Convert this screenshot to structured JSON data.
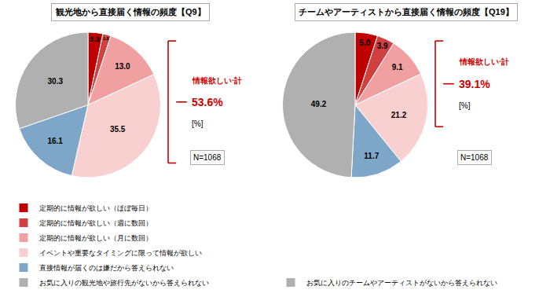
{
  "chart_data": [
    {
      "type": "pie",
      "title": "観光地から直接届く情報の頻度【Q9】",
      "categories": [
        "定期的に情報が欲しい（ほぼ毎日）",
        "定期的に情報が欲しい（週に数回）",
        "定期的に情報が欲しい（月に数回）",
        "イベントや重要なタイミングに限って情報が欲しい",
        "直接情報が届くのは嫌だから答えられない",
        "お気に入りの観光地や旅行先がないから答えられない"
      ],
      "values": [
        3.3,
        1.8,
        13.0,
        35.5,
        16.1,
        30.3
      ],
      "value_labels": [
        "3.3",
        "1.8",
        "13.0",
        "35.5",
        "16.1",
        "30.3"
      ],
      "colors": [
        "#c00000",
        "#d04040",
        "#f0a0a0",
        "#f9d0d0",
        "#7ea6c8",
        "#b0b0b0"
      ],
      "data_labels": true,
      "legend": "bottom",
      "annotations": [
        {
          "text": "情報欲しい·計",
          "color": "#cc0000"
        },
        {
          "text": "53.6%",
          "color": "#cc0000"
        },
        {
          "text": "[%]"
        },
        {
          "text": "N=1068"
        }
      ]
    },
    {
      "type": "pie",
      "title": "チームやアーティストから直接届く情報の頻度【Q19】",
      "categories": [
        "定期的に情報が欲しい（ほぼ毎日）",
        "定期的に情報が欲しい（週に数回）",
        "定期的に情報が欲しい（月に数回）",
        "イベントや重要なタイミングに限って情報が欲しい",
        "直接情報が届くのは嫌だから答えられない",
        "お気に入りのチームやアーティストがないから答えられない"
      ],
      "values": [
        5.0,
        3.9,
        9.1,
        21.2,
        11.7,
        49.2
      ],
      "value_labels": [
        "5.0",
        "3.9",
        "9.1",
        "21.2",
        "11.7",
        "49.2"
      ],
      "colors": [
        "#c00000",
        "#d04040",
        "#f0a0a0",
        "#f9d0d0",
        "#7ea6c8",
        "#b0b0b0"
      ],
      "data_labels": true,
      "legend": "bottom",
      "annotations": [
        {
          "text": "情報欲しい·計",
          "color": "#cc0000"
        },
        {
          "text": "39.1%",
          "color": "#cc0000"
        },
        {
          "text": "[%]"
        },
        {
          "text": "N=1068"
        }
      ]
    }
  ]
}
